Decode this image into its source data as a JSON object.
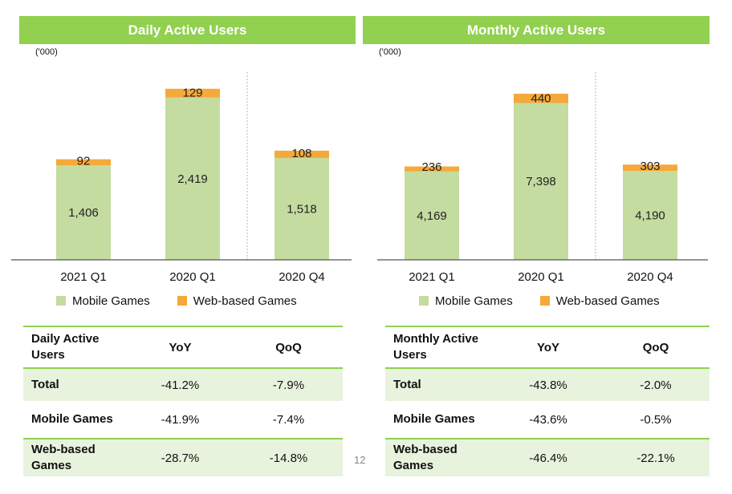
{
  "page_number": "12",
  "colors": {
    "mobile": "#c4dca0",
    "web": "#f4a93a",
    "banner": "#92d050",
    "shade": "#e8f3de"
  },
  "chart_data": [
    {
      "type": "bar",
      "stacked": true,
      "title": "Daily Active Users",
      "unit": "('000)",
      "categories": [
        "2021 Q1",
        "2020 Q1",
        "2020 Q4"
      ],
      "series": [
        {
          "name": "Mobile Games",
          "values": [
            1406,
            2419,
            1518
          ]
        },
        {
          "name": "Web-based Games",
          "values": [
            92,
            129,
            108
          ]
        }
      ],
      "value_labels": [
        [
          "1,406",
          "2,419",
          "1,518"
        ],
        [
          "92",
          "129",
          "108"
        ]
      ],
      "ylim": [
        0,
        2700
      ],
      "legend": "bottom"
    },
    {
      "type": "bar",
      "stacked": true,
      "title": "Monthly Active Users",
      "unit": "('000)",
      "categories": [
        "2021 Q1",
        "2020 Q1",
        "2020 Q4"
      ],
      "series": [
        {
          "name": "Mobile Games",
          "values": [
            4169,
            7398,
            4190
          ]
        },
        {
          "name": "Web-based Games",
          "values": [
            236,
            440,
            303
          ]
        }
      ],
      "value_labels": [
        [
          "4,169",
          "7,398",
          "4,190"
        ],
        [
          "236",
          "440",
          "303"
        ]
      ],
      "ylim": [
        0,
        8550
      ],
      "legend": "bottom"
    }
  ],
  "tables": [
    {
      "headers": [
        "Daily Active Users",
        "YoY",
        "QoQ"
      ],
      "rows": [
        [
          "Total",
          "-41.2%",
          "-7.9%"
        ],
        [
          "Mobile Games",
          "-41.9%",
          "-7.4%"
        ],
        [
          "Web-based Games",
          "-28.7%",
          "-14.8%"
        ]
      ]
    },
    {
      "headers": [
        "Monthly Active Users",
        "YoY",
        "QoQ"
      ],
      "rows": [
        [
          "Total",
          "-43.8%",
          "-2.0%"
        ],
        [
          "Mobile Games",
          "-43.6%",
          "-0.5%"
        ],
        [
          "Web-based Games",
          "-46.4%",
          "-22.1%"
        ]
      ]
    }
  ]
}
